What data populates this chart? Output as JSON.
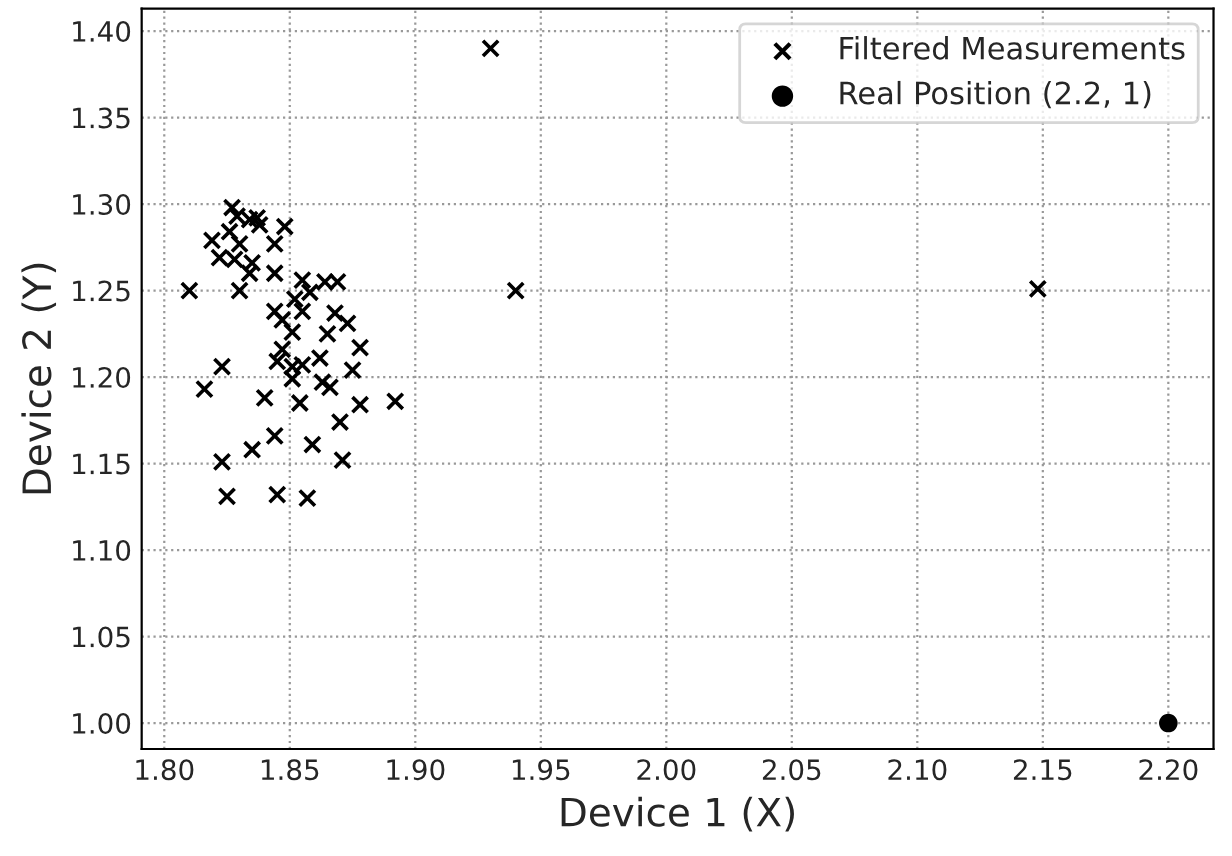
{
  "chart_data": {
    "type": "scatter",
    "xlabel": "Device 1 (X)",
    "ylabel": "Device 2 (Y)",
    "xlim": [
      1.791,
      2.218
    ],
    "ylim": [
      0.985,
      1.413
    ],
    "xticks": [
      {
        "value": 1.8,
        "label": "1.80"
      },
      {
        "value": 1.85,
        "label": "1.85"
      },
      {
        "value": 1.9,
        "label": "1.90"
      },
      {
        "value": 1.95,
        "label": "1.95"
      },
      {
        "value": 2.0,
        "label": "2.00"
      },
      {
        "value": 2.05,
        "label": "2.05"
      },
      {
        "value": 2.1,
        "label": "2.10"
      },
      {
        "value": 2.15,
        "label": "2.15"
      },
      {
        "value": 2.2,
        "label": "2.20"
      }
    ],
    "yticks": [
      {
        "value": 1.0,
        "label": "1.00"
      },
      {
        "value": 1.05,
        "label": "1.05"
      },
      {
        "value": 1.1,
        "label": "1.10"
      },
      {
        "value": 1.15,
        "label": "1.15"
      },
      {
        "value": 1.2,
        "label": "1.20"
      },
      {
        "value": 1.25,
        "label": "1.25"
      },
      {
        "value": 1.3,
        "label": "1.30"
      },
      {
        "value": 1.35,
        "label": "1.35"
      },
      {
        "value": 1.4,
        "label": "1.40"
      }
    ],
    "grid": true,
    "legend": "top right",
    "series": [
      {
        "name": "Filtered Measurements",
        "color": "#000000",
        "marker": "cross",
        "x": [
          1.827,
          1.829,
          1.834,
          1.837,
          1.838,
          1.848,
          1.826,
          1.819,
          1.83,
          1.844,
          1.822,
          1.828,
          1.835,
          1.834,
          1.844,
          1.81,
          1.83,
          1.855,
          1.864,
          1.869,
          1.858,
          1.852,
          1.844,
          1.855,
          1.847,
          1.868,
          1.873,
          1.851,
          1.865,
          1.878,
          1.847,
          1.845,
          1.851,
          1.855,
          1.862,
          1.875,
          1.823,
          1.851,
          1.863,
          1.866,
          1.816,
          1.84,
          1.854,
          1.878,
          1.892,
          1.87,
          1.844,
          1.835,
          1.859,
          1.823,
          1.871,
          1.825,
          1.845,
          1.857,
          1.93,
          1.94,
          2.148
        ],
        "values": [
          1.298,
          1.293,
          1.291,
          1.292,
          1.288,
          1.287,
          1.284,
          1.279,
          1.277,
          1.277,
          1.269,
          1.268,
          1.266,
          1.26,
          1.26,
          1.25,
          1.25,
          1.256,
          1.255,
          1.255,
          1.249,
          1.245,
          1.238,
          1.238,
          1.233,
          1.237,
          1.231,
          1.226,
          1.225,
          1.217,
          1.216,
          1.209,
          1.206,
          1.207,
          1.211,
          1.204,
          1.206,
          1.199,
          1.197,
          1.194,
          1.193,
          1.188,
          1.185,
          1.184,
          1.186,
          1.174,
          1.166,
          1.158,
          1.161,
          1.151,
          1.152,
          1.131,
          1.132,
          1.13,
          1.39,
          1.25,
          1.251
        ]
      },
      {
        "name": "Real Position (2.2, 1)",
        "color": "#000000",
        "marker": "circle",
        "x": [
          2.2
        ],
        "values": [
          1.0
        ]
      }
    ]
  }
}
